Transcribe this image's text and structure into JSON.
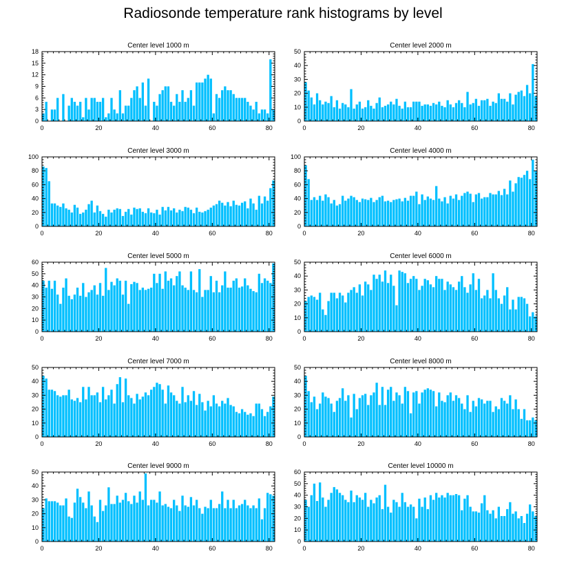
{
  "title": "Radiosonde temperature rank histograms by level",
  "bar_color": "#00bfff",
  "axis_color": "#000000",
  "chart_data": [
    {
      "type": "bar",
      "title": "Center level 1000 m",
      "ylim": [
        0,
        18
      ],
      "yticks": [
        0,
        3,
        6,
        9,
        12,
        15,
        18
      ],
      "xlim": [
        0,
        82
      ],
      "xticks": [
        0,
        20,
        40,
        60,
        80
      ],
      "values": [
        2,
        5,
        0,
        3,
        3,
        6,
        0,
        7,
        0,
        4,
        6,
        5,
        4,
        5,
        1,
        6,
        3,
        6,
        6,
        5,
        5,
        6,
        1,
        2,
        6,
        3,
        2,
        8,
        2,
        4,
        4,
        6,
        8,
        9,
        6,
        10,
        4,
        11,
        0,
        5,
        4,
        7,
        8,
        9,
        9,
        5,
        4,
        7,
        5,
        8,
        5,
        6,
        8,
        4,
        10,
        10,
        10,
        11,
        12,
        11,
        2,
        7,
        6,
        8,
        9,
        8,
        8,
        7,
        6,
        6,
        6,
        6,
        5,
        4,
        3,
        5,
        2,
        3,
        3,
        2,
        16,
        3
      ]
    },
    {
      "type": "bar",
      "title": "Center level 2000 m",
      "ylim": [
        0,
        50
      ],
      "yticks": [
        0,
        10,
        20,
        30,
        40,
        50
      ],
      "xlim": [
        0,
        82
      ],
      "xticks": [
        0,
        20,
        40,
        60,
        80
      ],
      "values": [
        28,
        22,
        17,
        12,
        20,
        15,
        12,
        14,
        13,
        18,
        10,
        15,
        9,
        13,
        12,
        10,
        23,
        9,
        12,
        14,
        9,
        10,
        15,
        11,
        9,
        13,
        17,
        10,
        11,
        12,
        14,
        12,
        16,
        11,
        9,
        14,
        10,
        10,
        14,
        14,
        14,
        11,
        12,
        12,
        11,
        13,
        12,
        14,
        11,
        10,
        15,
        12,
        10,
        13,
        15,
        13,
        10,
        21,
        12,
        13,
        16,
        11,
        15,
        15,
        16,
        11,
        14,
        13,
        20,
        16,
        16,
        14,
        20,
        12,
        19,
        21,
        22,
        18,
        26,
        20,
        41,
        18
      ]
    },
    {
      "type": "bar",
      "title": "Center level 3000 m",
      "ylim": [
        0,
        100
      ],
      "yticks": [
        0,
        20,
        40,
        60,
        80,
        100
      ],
      "xlim": [
        0,
        82
      ],
      "xticks": [
        0,
        20,
        40,
        60,
        80
      ],
      "values": [
        86,
        84,
        65,
        33,
        33,
        30,
        28,
        33,
        26,
        24,
        20,
        31,
        27,
        18,
        20,
        24,
        32,
        37,
        20,
        30,
        22,
        18,
        14,
        24,
        20,
        24,
        26,
        25,
        15,
        21,
        25,
        17,
        27,
        25,
        26,
        21,
        19,
        26,
        20,
        19,
        24,
        17,
        28,
        23,
        28,
        23,
        26,
        20,
        24,
        22,
        28,
        27,
        24,
        19,
        27,
        21,
        20,
        22,
        24,
        27,
        30,
        32,
        37,
        34,
        30,
        35,
        29,
        37,
        31,
        30,
        34,
        36,
        26,
        40,
        33,
        24,
        44,
        33,
        43,
        37,
        55,
        66
      ]
    },
    {
      "type": "bar",
      "title": "Center level 4000 m",
      "ylim": [
        0,
        100
      ],
      "yticks": [
        0,
        20,
        40,
        60,
        80,
        100
      ],
      "xlim": [
        0,
        82
      ],
      "xticks": [
        0,
        20,
        40,
        60,
        80
      ],
      "values": [
        88,
        68,
        38,
        42,
        38,
        44,
        37,
        46,
        42,
        33,
        38,
        30,
        32,
        44,
        37,
        40,
        44,
        42,
        38,
        35,
        40,
        39,
        38,
        41,
        35,
        38,
        42,
        44,
        36,
        37,
        35,
        38,
        39,
        40,
        36,
        41,
        37,
        44,
        44,
        50,
        32,
        46,
        38,
        43,
        40,
        38,
        58,
        40,
        36,
        42,
        33,
        44,
        40,
        46,
        38,
        44,
        48,
        50,
        47,
        35,
        46,
        48,
        40,
        42,
        42,
        48,
        46,
        46,
        51,
        45,
        54,
        46,
        66,
        50,
        62,
        71,
        70,
        74,
        80,
        68,
        96,
        80
      ]
    },
    {
      "type": "bar",
      "title": "Center level 5000 m",
      "ylim": [
        0,
        60
      ],
      "yticks": [
        0,
        10,
        20,
        30,
        40,
        50,
        60
      ],
      "xlim": [
        0,
        82
      ],
      "xticks": [
        0,
        20,
        40,
        60,
        80
      ],
      "values": [
        44,
        38,
        44,
        37,
        44,
        32,
        24,
        38,
        46,
        31,
        28,
        32,
        38,
        31,
        42,
        30,
        34,
        36,
        40,
        32,
        42,
        31,
        55,
        36,
        43,
        40,
        46,
        44,
        32,
        44,
        24,
        41,
        43,
        42,
        36,
        38,
        36,
        37,
        38,
        50,
        42,
        50,
        37,
        52,
        44,
        46,
        40,
        48,
        52,
        40,
        38,
        36,
        52,
        36,
        34,
        54,
        30,
        36,
        36,
        48,
        34,
        44,
        34,
        40,
        52,
        38,
        38,
        44,
        46,
        38,
        39,
        46,
        40,
        37,
        35,
        34,
        50,
        42,
        46,
        44,
        42,
        59
      ]
    },
    {
      "type": "bar",
      "title": "Center level 6000 m",
      "ylim": [
        0,
        50
      ],
      "yticks": [
        0,
        10,
        20,
        30,
        40,
        50
      ],
      "xlim": [
        0,
        82
      ],
      "xticks": [
        0,
        20,
        40,
        60,
        80
      ],
      "values": [
        22,
        25,
        26,
        25,
        23,
        28,
        16,
        12,
        22,
        28,
        28,
        24,
        28,
        26,
        21,
        28,
        30,
        32,
        28,
        34,
        26,
        36,
        34,
        30,
        41,
        38,
        41,
        36,
        44,
        35,
        41,
        33,
        19,
        44,
        43,
        42,
        35,
        38,
        40,
        38,
        30,
        33,
        38,
        37,
        34,
        32,
        40,
        38,
        38,
        30,
        36,
        34,
        32,
        30,
        36,
        40,
        32,
        28,
        34,
        42,
        30,
        38,
        24,
        26,
        30,
        24,
        42,
        30,
        24,
        20,
        26,
        32,
        16,
        23,
        16,
        25,
        25,
        24,
        20,
        11,
        14,
        11
      ]
    },
    {
      "type": "bar",
      "title": "Center level 7000 m",
      "ylim": [
        0,
        50
      ],
      "yticks": [
        0,
        10,
        20,
        30,
        40,
        50
      ],
      "xlim": [
        0,
        82
      ],
      "xticks": [
        0,
        20,
        40,
        60,
        80
      ],
      "values": [
        44,
        42,
        34,
        34,
        33,
        30,
        29,
        30,
        30,
        34,
        27,
        26,
        28,
        25,
        36,
        27,
        36,
        30,
        30,
        32,
        25,
        36,
        27,
        30,
        34,
        24,
        38,
        43,
        25,
        42,
        30,
        28,
        24,
        31,
        27,
        29,
        32,
        30,
        34,
        36,
        39,
        38,
        34,
        24,
        37,
        32,
        30,
        26,
        24,
        36,
        25,
        30,
        26,
        33,
        23,
        31,
        25,
        19,
        26,
        22,
        30,
        24,
        22,
        26,
        24,
        28,
        23,
        22,
        18,
        17,
        20,
        18,
        16,
        17,
        15,
        24,
        24,
        20,
        15,
        18,
        22,
        29
      ]
    },
    {
      "type": "bar",
      "title": "Center level 8000 m",
      "ylim": [
        0,
        50
      ],
      "yticks": [
        0,
        10,
        20,
        30,
        40,
        50
      ],
      "xlim": [
        0,
        82
      ],
      "xticks": [
        0,
        20,
        40,
        60,
        80
      ],
      "values": [
        44,
        33,
        25,
        29,
        20,
        24,
        32,
        29,
        28,
        24,
        18,
        26,
        28,
        35,
        26,
        30,
        14,
        31,
        20,
        28,
        30,
        31,
        23,
        30,
        32,
        39,
        23,
        36,
        23,
        34,
        36,
        26,
        32,
        30,
        24,
        36,
        33,
        17,
        32,
        33,
        24,
        32,
        34,
        35,
        34,
        33,
        22,
        32,
        26,
        25,
        30,
        32,
        26,
        30,
        28,
        24,
        20,
        30,
        18,
        26,
        22,
        28,
        27,
        24,
        26,
        26,
        18,
        22,
        20,
        28,
        26,
        24,
        30,
        20,
        27,
        20,
        13,
        20,
        12,
        12,
        14,
        12
      ]
    },
    {
      "type": "bar",
      "title": "Center level 9000 m",
      "ylim": [
        0,
        50
      ],
      "yticks": [
        0,
        10,
        20,
        30,
        40,
        50
      ],
      "xlim": [
        0,
        82
      ],
      "xticks": [
        0,
        20,
        40,
        60,
        80
      ],
      "values": [
        24,
        31,
        29,
        29,
        29,
        28,
        26,
        26,
        31,
        18,
        17,
        28,
        38,
        32,
        28,
        24,
        36,
        26,
        18,
        14,
        30,
        22,
        26,
        39,
        27,
        27,
        33,
        28,
        30,
        35,
        29,
        27,
        33,
        28,
        36,
        30,
        49,
        26,
        30,
        30,
        28,
        36,
        26,
        27,
        25,
        24,
        30,
        26,
        22,
        33,
        26,
        25,
        32,
        26,
        30,
        24,
        20,
        25,
        24,
        30,
        24,
        24,
        27,
        36,
        24,
        30,
        24,
        30,
        24,
        26,
        27,
        30,
        26,
        24,
        26,
        24,
        31,
        16,
        24,
        35,
        34,
        33
      ]
    },
    {
      "type": "bar",
      "title": "Center level 10000 m",
      "ylim": [
        0,
        60
      ],
      "yticks": [
        0,
        10,
        20,
        30,
        40,
        50,
        60
      ],
      "xlim": [
        0,
        82
      ],
      "xticks": [
        0,
        20,
        40,
        60,
        80
      ],
      "values": [
        36,
        30,
        40,
        50,
        35,
        51,
        38,
        30,
        36,
        42,
        47,
        45,
        42,
        40,
        36,
        34,
        44,
        34,
        40,
        38,
        36,
        42,
        30,
        36,
        33,
        38,
        40,
        28,
        49,
        30,
        25,
        36,
        34,
        30,
        42,
        34,
        30,
        32,
        30,
        20,
        37,
        30,
        38,
        28,
        40,
        36,
        42,
        38,
        40,
        38,
        42,
        40,
        40,
        41,
        40,
        27,
        37,
        40,
        30,
        26,
        26,
        25,
        33,
        40,
        27,
        24,
        27,
        20,
        30,
        22,
        22,
        28,
        34,
        24,
        26,
        20,
        22,
        16,
        24,
        32,
        26,
        22
      ]
    }
  ]
}
